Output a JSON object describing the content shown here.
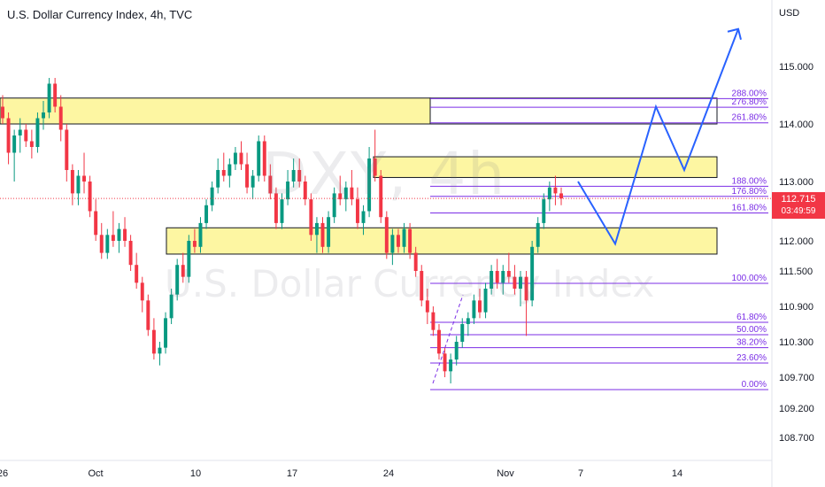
{
  "header": {
    "title": "U.S. Dollar Currency Index, 4h, TVC",
    "currency": "USD"
  },
  "watermark": {
    "symbol": "DXY, 4h",
    "name": "U.S. Dollar Currency Index"
  },
  "last_price": {
    "value": "112.715",
    "countdown": "03:49:59",
    "color": "#f23645"
  },
  "colors": {
    "up": "#089981",
    "down": "#f23645",
    "zone_fill": "#fdf592",
    "fib_line": "#7b2ee6",
    "projection": "#2962ff"
  },
  "chart_data": {
    "type": "candlestick",
    "y_axis": {
      "unit": "USD",
      "ticks": [
        "115.000",
        "114.000",
        "113.000",
        "112.000",
        "111.500",
        "110.900",
        "110.300",
        "109.700",
        "109.200",
        "108.700"
      ]
    },
    "x_axis": {
      "ticks": [
        "26",
        "Oct",
        "10",
        "17",
        "24",
        "Nov",
        "7",
        "14"
      ]
    },
    "fib_levels": [
      {
        "label": "288.00%",
        "price": 114.44
      },
      {
        "label": "276.80%",
        "price": 114.29
      },
      {
        "label": "261.80%",
        "price": 114.02
      },
      {
        "label": "188.00%",
        "price": 112.92
      },
      {
        "label": "176.80%",
        "price": 112.75
      },
      {
        "label": "161.80%",
        "price": 112.47
      },
      {
        "label": "100.00%",
        "price": 111.29
      },
      {
        "label": "61.80%",
        "price": 110.63
      },
      {
        "label": "50.00%",
        "price": 110.42
      },
      {
        "label": "38.20%",
        "price": 110.2
      },
      {
        "label": "23.60%",
        "price": 109.94
      },
      {
        "label": "0.00%",
        "price": 109.5
      }
    ],
    "zones": [
      {
        "top": 114.45,
        "bottom": 114.0
      },
      {
        "top": 113.43,
        "bottom": 113.07
      },
      {
        "top": 112.22,
        "bottom": 111.78
      }
    ],
    "last_price": 112.715,
    "projection_path": [
      113.0,
      111.95,
      114.3,
      113.2,
      115.65
    ],
    "candles": [
      [
        114.3,
        114.5,
        114.0,
        114.1
      ],
      [
        114.1,
        114.2,
        113.3,
        113.5
      ],
      [
        113.5,
        113.9,
        113.0,
        113.8
      ],
      [
        113.8,
        114.1,
        113.5,
        113.9
      ],
      [
        113.9,
        114.0,
        113.6,
        113.7
      ],
      [
        113.7,
        113.9,
        113.4,
        113.6
      ],
      [
        113.6,
        114.2,
        113.5,
        114.1
      ],
      [
        114.1,
        114.4,
        113.9,
        114.2
      ],
      [
        114.2,
        114.8,
        114.1,
        114.7
      ],
      [
        114.7,
        114.8,
        114.2,
        114.3
      ],
      [
        114.3,
        114.5,
        113.7,
        113.9
      ],
      [
        113.9,
        114.0,
        113.0,
        113.2
      ],
      [
        113.2,
        113.3,
        112.6,
        112.8
      ],
      [
        112.8,
        113.2,
        112.6,
        113.1
      ],
      [
        113.1,
        113.5,
        112.8,
        113.0
      ],
      [
        113.0,
        113.1,
        112.4,
        112.5
      ],
      [
        112.5,
        112.7,
        112.0,
        112.1
      ],
      [
        112.1,
        112.3,
        111.7,
        111.8
      ],
      [
        111.8,
        112.2,
        111.7,
        112.1
      ],
      [
        112.1,
        112.5,
        111.9,
        112.0
      ],
      [
        112.0,
        112.3,
        111.8,
        112.2
      ],
      [
        112.2,
        112.4,
        111.9,
        112.0
      ],
      [
        112.0,
        112.1,
        111.5,
        111.6
      ],
      [
        111.6,
        111.8,
        111.2,
        111.3
      ],
      [
        111.3,
        111.4,
        110.8,
        111.0
      ],
      [
        111.0,
        111.1,
        110.4,
        110.5
      ],
      [
        110.5,
        110.7,
        110.0,
        110.1
      ],
      [
        110.1,
        110.3,
        109.9,
        110.2
      ],
      [
        110.2,
        110.8,
        110.1,
        110.7
      ],
      [
        110.7,
        111.2,
        110.6,
        111.1
      ],
      [
        111.1,
        111.7,
        111.0,
        111.6
      ],
      [
        111.6,
        111.8,
        111.3,
        111.4
      ],
      [
        111.4,
        112.1,
        111.3,
        112.0
      ],
      [
        112.0,
        112.2,
        111.8,
        111.9
      ],
      [
        111.9,
        112.4,
        111.8,
        112.3
      ],
      [
        112.3,
        112.7,
        112.2,
        112.6
      ],
      [
        112.6,
        113.0,
        112.5,
        112.9
      ],
      [
        112.9,
        113.4,
        112.8,
        113.2
      ],
      [
        113.2,
        113.5,
        113.0,
        113.1
      ],
      [
        113.1,
        113.4,
        112.9,
        113.3
      ],
      [
        113.3,
        113.6,
        113.2,
        113.5
      ],
      [
        113.5,
        113.7,
        113.2,
        113.3
      ],
      [
        113.3,
        113.5,
        112.8,
        112.9
      ],
      [
        112.9,
        113.2,
        112.7,
        113.1
      ],
      [
        113.1,
        113.8,
        113.0,
        113.7
      ],
      [
        113.7,
        113.8,
        113.0,
        113.1
      ],
      [
        113.1,
        113.3,
        112.7,
        112.8
      ],
      [
        112.8,
        112.9,
        112.2,
        112.3
      ],
      [
        112.3,
        112.8,
        112.2,
        112.7
      ],
      [
        112.7,
        113.2,
        112.6,
        113.0
      ],
      [
        113.0,
        113.4,
        112.9,
        113.2
      ],
      [
        113.2,
        113.4,
        112.9,
        113.0
      ],
      [
        113.0,
        113.1,
        112.6,
        112.7
      ],
      [
        112.7,
        112.8,
        112.0,
        112.1
      ],
      [
        112.1,
        112.4,
        111.8,
        112.3
      ],
      [
        112.3,
        112.4,
        111.8,
        111.9
      ],
      [
        111.9,
        112.5,
        111.8,
        112.4
      ],
      [
        112.4,
        112.9,
        112.3,
        112.8
      ],
      [
        112.8,
        113.1,
        112.6,
        112.7
      ],
      [
        112.7,
        113.0,
        112.5,
        112.9
      ],
      [
        112.9,
        113.2,
        112.6,
        112.7
      ],
      [
        112.7,
        112.9,
        112.2,
        112.3
      ],
      [
        112.3,
        112.6,
        112.1,
        112.5
      ],
      [
        112.5,
        113.6,
        112.4,
        113.4
      ],
      [
        113.4,
        113.9,
        113.0,
        113.1
      ],
      [
        113.1,
        113.2,
        112.3,
        112.4
      ],
      [
        112.4,
        112.5,
        111.7,
        111.8
      ],
      [
        111.8,
        112.2,
        111.6,
        112.1
      ],
      [
        112.1,
        112.2,
        111.8,
        111.9
      ],
      [
        111.9,
        112.3,
        111.8,
        112.2
      ],
      [
        112.2,
        112.3,
        111.7,
        111.8
      ],
      [
        111.8,
        111.9,
        111.4,
        111.5
      ],
      [
        111.5,
        111.6,
        110.9,
        111.0
      ],
      [
        111.0,
        111.2,
        110.6,
        110.8
      ],
      [
        110.8,
        110.9,
        110.4,
        110.5
      ],
      [
        110.5,
        110.6,
        110.0,
        110.1
      ],
      [
        110.1,
        110.2,
        109.7,
        109.8
      ],
      [
        109.8,
        110.1,
        109.6,
        110.0
      ],
      [
        110.0,
        110.4,
        109.9,
        110.3
      ],
      [
        110.3,
        110.7,
        110.2,
        110.6
      ],
      [
        110.6,
        110.8,
        110.4,
        110.7
      ],
      [
        110.7,
        111.1,
        110.6,
        111.0
      ],
      [
        111.0,
        111.2,
        110.7,
        110.8
      ],
      [
        110.8,
        111.3,
        110.7,
        111.2
      ],
      [
        111.2,
        111.6,
        111.1,
        111.5
      ],
      [
        111.5,
        111.7,
        111.2,
        111.3
      ],
      [
        111.3,
        111.6,
        111.1,
        111.5
      ],
      [
        111.5,
        111.8,
        111.3,
        111.4
      ],
      [
        111.4,
        111.6,
        111.1,
        111.2
      ],
      [
        111.2,
        111.5,
        110.9,
        111.4
      ],
      [
        111.4,
        111.5,
        110.4,
        111.0
      ],
      [
        111.0,
        112.0,
        110.9,
        111.9
      ],
      [
        111.9,
        112.4,
        111.8,
        112.3
      ],
      [
        112.3,
        112.8,
        112.2,
        112.7
      ],
      [
        112.7,
        113.0,
        112.5,
        112.9
      ],
      [
        112.9,
        113.1,
        112.6,
        112.8
      ],
      [
        112.8,
        112.9,
        112.6,
        112.715
      ]
    ]
  }
}
